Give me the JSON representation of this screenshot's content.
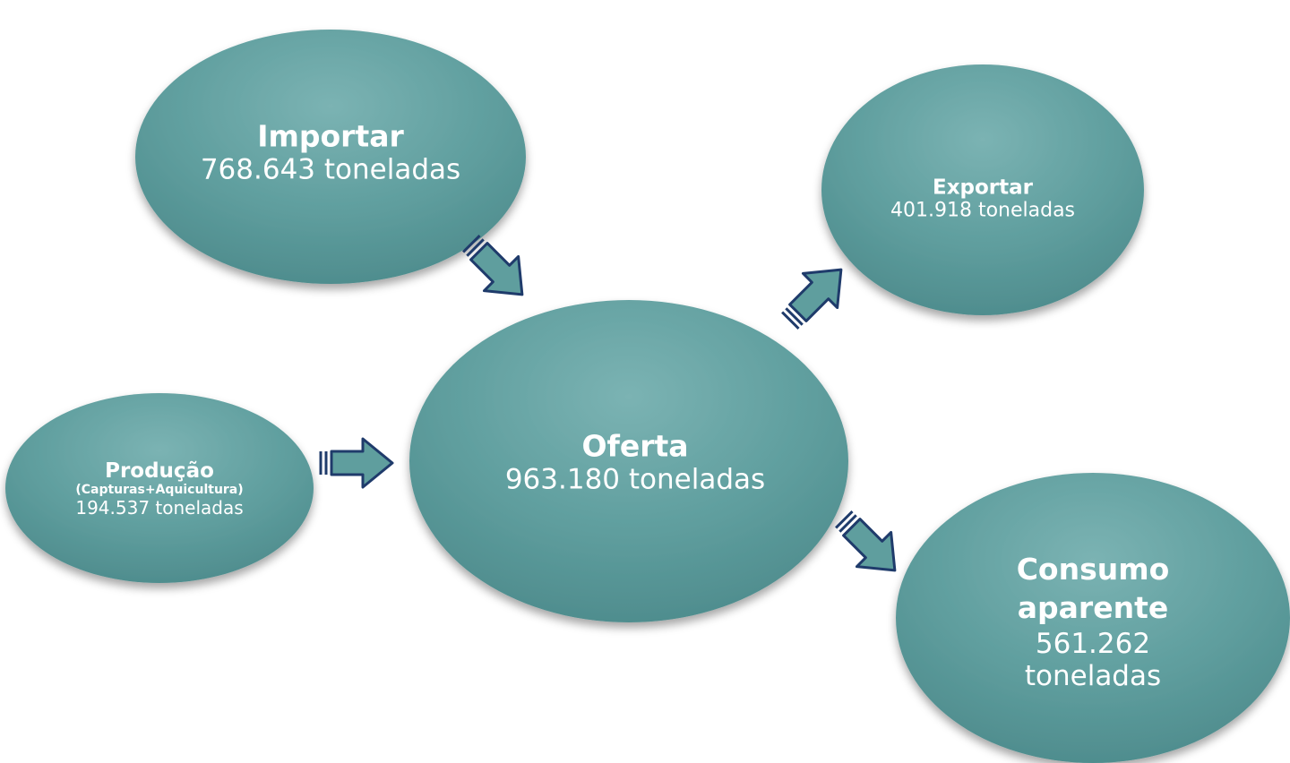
{
  "nodes": [
    {
      "title": "Importar",
      "value": "768.643 toneladas"
    },
    {
      "title": "Exportar",
      "value": "401.918 toneladas"
    },
    {
      "title": "Produção",
      "subtitle": "(Capturas+Aquicultura)",
      "value": "194.537 toneladas"
    },
    {
      "title": "Oferta",
      "value": "963.180 toneladas"
    },
    {
      "title": "Consumo aparente",
      "value": "561.262 toneladas"
    }
  ]
}
